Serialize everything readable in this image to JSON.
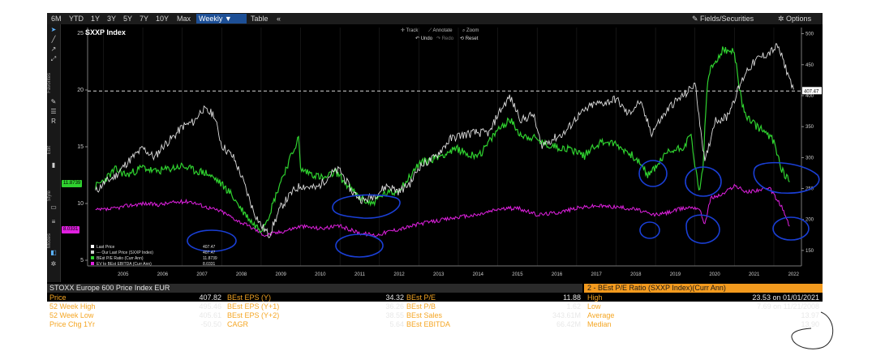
{
  "toolbar": {
    "ranges": [
      "6M",
      "YTD",
      "1Y",
      "3Y",
      "5Y",
      "7Y",
      "10Y",
      "Max"
    ],
    "weekly": "Weekly ▼",
    "table": "Table",
    "collapse": "«",
    "fields": "Fields/Securities",
    "options": "Options"
  },
  "chart_tools": {
    "track": "Track",
    "annotate": "Annotate",
    "zoom": "Zoom",
    "undo": "Undo",
    "redo": "Redo",
    "reset": "Reset"
  },
  "side_sections": [
    "Favorites",
    "Edit",
    "Style",
    "Modes"
  ],
  "colors": {
    "price": "#dcdcdc",
    "pe": "#2fd12f",
    "ev": "#e020e0",
    "blue_annot": "#1a3fd6",
    "orange": "#f39a1e"
  },
  "chart_data": {
    "type": "line",
    "title": "SXXP Index",
    "x_ticks": [
      "2005",
      "2006",
      "2007",
      "2008",
      "2009",
      "2010",
      "2011",
      "2012",
      "2013",
      "2014",
      "2015",
      "2016",
      "2017",
      "2018",
      "2019",
      "2020",
      "2021",
      "2022"
    ],
    "left_axis": {
      "range": [
        4.5,
        25.5
      ],
      "ticks": [
        "25",
        "20",
        "15",
        "10",
        "5"
      ]
    },
    "right_axis": {
      "range": [
        125,
        510
      ],
      "ticks": [
        "500",
        "450",
        "400",
        "350",
        "300",
        "250",
        "200",
        "150"
      ]
    },
    "last_price_label": "407.47",
    "left_badges": [
      {
        "text": "11.8739",
        "color": "#2fd12f"
      },
      {
        "text": "8.0331",
        "color": "#e020e0"
      }
    ],
    "legend": [
      {
        "name": "Last Price",
        "value": "407.47",
        "color": "#ffffff"
      },
      {
        "name": "--- Our Last Price (SXXP Index)",
        "value": "407.47",
        "color": "#cfcfcf"
      },
      {
        "name": "BEst P/E Ratio (Curr Ann)",
        "value": "11.8739",
        "color": "#2fd12f"
      },
      {
        "name": "EV to BEst EBITDA (Curr Ann)",
        "value": "8.0331",
        "color": "#e020e0"
      }
    ],
    "series": [
      {
        "name": "Last Price",
        "axis": "right",
        "x": [
          2004.8,
          2005.0,
          2005.3,
          2005.6,
          2006.0,
          2006.3,
          2006.5,
          2006.8,
          2007.0,
          2007.3,
          2007.5,
          2007.8,
          2008.0,
          2008.3,
          2008.5,
          2008.8,
          2009.0,
          2009.2,
          2009.5,
          2009.8,
          2010.0,
          2010.4,
          2010.8,
          2011.0,
          2011.3,
          2011.6,
          2011.9,
          2012.2,
          2012.5,
          2012.8,
          2013.0,
          2013.4,
          2013.8,
          2014.0,
          2014.4,
          2014.8,
          2015.0,
          2015.3,
          2015.6,
          2015.9,
          2016.1,
          2016.4,
          2016.7,
          2017.0,
          2017.4,
          2017.8,
          2018.0,
          2018.3,
          2018.6,
          2018.9,
          2019.0,
          2019.4,
          2019.8,
          2020.0,
          2020.15,
          2020.25,
          2020.5,
          2020.8,
          2021.0,
          2021.3,
          2021.6,
          2021.9,
          2022.1,
          2022.3,
          2022.5
        ],
        "y": [
          245,
          258,
          270,
          292,
          315,
          300,
          318,
          335,
          350,
          358,
          378,
          370,
          320,
          300,
          270,
          215,
          190,
          175,
          220,
          245,
          255,
          250,
          275,
          280,
          245,
          230,
          240,
          255,
          245,
          260,
          285,
          300,
          330,
          335,
          340,
          340,
          370,
          398,
          360,
          370,
          320,
          330,
          340,
          365,
          385,
          390,
          395,
          370,
          390,
          340,
          350,
          385,
          405,
          420,
          345,
          290,
          360,
          365,
          395,
          440,
          460,
          470,
          480,
          445,
          410
        ]
      },
      {
        "name": "BEst P/E Ratio (Curr Ann)",
        "axis": "left",
        "x": [
          2004.8,
          2005.0,
          2005.3,
          2005.6,
          2006.0,
          2006.3,
          2006.6,
          2007.0,
          2007.3,
          2007.6,
          2007.9,
          2008.2,
          2008.5,
          2008.8,
          2009.0,
          2009.2,
          2009.5,
          2009.8,
          2009.95,
          2010.0,
          2010.3,
          2010.6,
          2010.9,
          2011.2,
          2011.5,
          2011.8,
          2012.1,
          2012.4,
          2012.7,
          2013.0,
          2013.4,
          2013.8,
          2014.0,
          2014.3,
          2014.6,
          2015.0,
          2015.3,
          2015.6,
          2015.9,
          2016.2,
          2016.5,
          2016.8,
          2017.0,
          2017.2,
          2017.4,
          2017.7,
          2018.0,
          2018.3,
          2018.5,
          2018.8,
          2018.95,
          2019.3,
          2019.7,
          2019.9,
          2020.1,
          2020.2,
          2020.3,
          2020.4,
          2020.7,
          2021.0,
          2021.2,
          2021.4,
          2021.7,
          2022.0,
          2022.2,
          2022.4
        ],
        "y": [
          11.5,
          12.0,
          13.0,
          12.5,
          13.2,
          12.8,
          13.0,
          13.3,
          12.9,
          12.7,
          12.0,
          11.0,
          9.5,
          8.2,
          7.7,
          9.0,
          12.0,
          14.5,
          15.8,
          13.0,
          12.6,
          12.2,
          12.8,
          11.5,
          10.5,
          10.0,
          10.8,
          11.0,
          12.0,
          13.5,
          14.0,
          14.6,
          14.8,
          14.2,
          14.5,
          16.5,
          17.4,
          16.0,
          15.8,
          15.2,
          15.0,
          14.8,
          14.6,
          14.2,
          15.0,
          15.5,
          15.2,
          14.5,
          14.0,
          12.5,
          13.0,
          14.5,
          15.0,
          16.0,
          11.0,
          13.0,
          20.0,
          21.8,
          23.5,
          23.3,
          18.5,
          17.2,
          16.5,
          15.5,
          13.0,
          11.9
        ]
      },
      {
        "name": "EV to BEst EBITDA (Curr Ann)",
        "axis": "left",
        "x": [
          2004.8,
          2005.2,
          2005.6,
          2006.0,
          2006.4,
          2006.8,
          2007.2,
          2007.6,
          2008.0,
          2008.4,
          2008.8,
          2009.1,
          2009.5,
          2010.0,
          2010.5,
          2011.0,
          2011.5,
          2011.9,
          2012.3,
          2012.7,
          2013.0,
          2013.5,
          2014.0,
          2014.5,
          2015.0,
          2015.5,
          2016.0,
          2016.5,
          2017.0,
          2017.5,
          2018.0,
          2018.5,
          2018.9,
          2019.2,
          2019.6,
          2019.9,
          2020.1,
          2020.25,
          2020.4,
          2020.7,
          2021.0,
          2021.3,
          2021.6,
          2021.9,
          2022.2,
          2022.4
        ],
        "y": [
          9.4,
          9.5,
          9.8,
          10.0,
          9.9,
          10.1,
          10.2,
          9.7,
          9.3,
          8.5,
          7.8,
          7.2,
          7.5,
          8.0,
          7.8,
          8.0,
          7.4,
          7.2,
          7.6,
          7.9,
          8.2,
          8.5,
          8.8,
          9.0,
          9.5,
          9.6,
          9.0,
          9.2,
          9.6,
          9.8,
          9.7,
          9.5,
          9.0,
          9.1,
          9.5,
          9.7,
          9.6,
          8.2,
          10.5,
          10.8,
          11.6,
          11.0,
          11.2,
          11.3,
          9.7,
          8.0
        ]
      }
    ],
    "reference_line": {
      "axis": "right",
      "value": 407.47
    }
  },
  "table": {
    "title": "STOXX Europe 600 Price Index EUR",
    "right_title": "2 - BEst P/E Ratio (SXXP Index)(Curr Ann)",
    "rows": [
      {
        "l1": "Price",
        "v1": "407.82",
        "l2": "BEst EPS (Y)",
        "v2": "34.32",
        "l3": "BEst P/E",
        "v3": "11.88",
        "l4": "High",
        "v4": "23.53 on 01/01/2021"
      },
      {
        "l1": "52 Week High",
        "v1": "495.46",
        "l2": "BEst EPS (Y+1)",
        "v2": "36.26",
        "l3": "BEst P/B",
        "v3": "1.62",
        "l4": "Low",
        "v4": "7.69 on 11/21/2008"
      },
      {
        "l1": "52 Week Low",
        "v1": "405.61",
        "l2": "BEst EPS (Y+2)",
        "v2": "38.55",
        "l3": "BEst Sales",
        "v3": "343.61M",
        "l4": "Average",
        "v4": "13.97"
      },
      {
        "l1": "Price Chg 1Yr",
        "v1": "-50.50",
        "l2": "CAGR",
        "v2": "5.64",
        "l3": "BEst EBITDA",
        "v3": "66.42M",
        "l4": "Median",
        "v4": "13.90"
      }
    ]
  }
}
